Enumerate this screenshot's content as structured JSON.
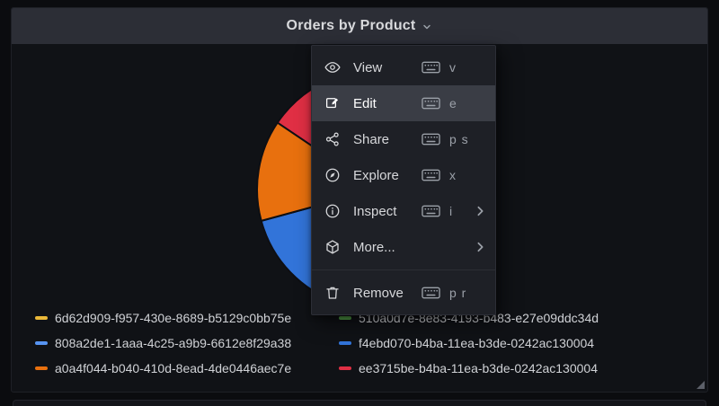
{
  "panel": {
    "title": "Orders by Product"
  },
  "menu": {
    "items": [
      {
        "label": "View",
        "icon": "eye",
        "kbd": true,
        "shortcut": "v",
        "submenu": false,
        "active": false
      },
      {
        "label": "Edit",
        "icon": "edit",
        "kbd": true,
        "shortcut": "e",
        "submenu": false,
        "active": true
      },
      {
        "label": "Share",
        "icon": "share",
        "kbd": true,
        "shortcut": "p s",
        "submenu": false,
        "active": false
      },
      {
        "label": "Explore",
        "icon": "compass",
        "kbd": true,
        "shortcut": "x",
        "submenu": false,
        "active": false
      },
      {
        "label": "Inspect",
        "icon": "info-circle",
        "kbd": true,
        "shortcut": "i",
        "submenu": true,
        "active": false
      },
      {
        "label": "More...",
        "icon": "cube",
        "kbd": false,
        "shortcut": "",
        "submenu": true,
        "active": false
      },
      {
        "label": "Remove",
        "icon": "trash",
        "kbd": true,
        "shortcut": "p r",
        "submenu": false,
        "active": false,
        "divider_before": true
      }
    ]
  },
  "legend": {
    "items": [
      {
        "label": "6d62d909-f957-430e-8689-b5129c0bb75e",
        "color": "#eab839"
      },
      {
        "label": "808a2de1-1aaa-4c25-a9b9-6612e8f29a38",
        "color": "#5794f2"
      },
      {
        "label": "a0a4f044-b040-410d-8ead-4de0446aec7e",
        "color": "#e8700e"
      },
      {
        "label": "510a0d7e-8e83-4193-b483-e27e09ddc34d",
        "color": "#56a64b"
      },
      {
        "label": "f4ebd070-b4ba-11ea-b3de-0242ac130004",
        "color": "#3274d9"
      },
      {
        "label": "ee3715be-b4ba-11ea-b3de-0242ac130004",
        "color": "#e02f44"
      }
    ]
  },
  "chart_data": {
    "type": "pie",
    "title": "Orders by Product",
    "legend_position": "bottom",
    "center": [
      418,
      210
    ],
    "radius": 133,
    "slices": [
      {
        "label": "ee3715be-b4ba-11ea-b3de-0242ac130004",
        "color": "#e02f44",
        "start_deg": 304,
        "end_deg": 400,
        "percent_est": 26.7
      },
      {
        "label": "6d62d909-f957-430e-8689-b5129c0bb75e",
        "color": "#eab839",
        "start_deg": 40,
        "end_deg": 115,
        "percent_est": 20.8
      },
      {
        "label": "510a0d7e-8e83-4193-b483-e27e09ddc34d",
        "color": "#56a64b",
        "start_deg": 115,
        "end_deg": 165,
        "percent_est": 13.9
      },
      {
        "label": "808a2de1-1aaa-4c25-a9b9-6612e8f29a38",
        "color": "#5794f2",
        "start_deg": 165,
        "end_deg": 190,
        "percent_est": 6.9
      },
      {
        "label": "f4ebd070-b4ba-11ea-b3de-0242ac130004",
        "color": "#3274d9",
        "start_deg": 190,
        "end_deg": 254.8,
        "percent_est": 18.0
      },
      {
        "label": "a0a4f044-b040-410d-8ead-4de0446aec7e",
        "color": "#e8700e",
        "start_deg": 254.8,
        "end_deg": 304,
        "percent_est": 13.7
      }
    ]
  }
}
